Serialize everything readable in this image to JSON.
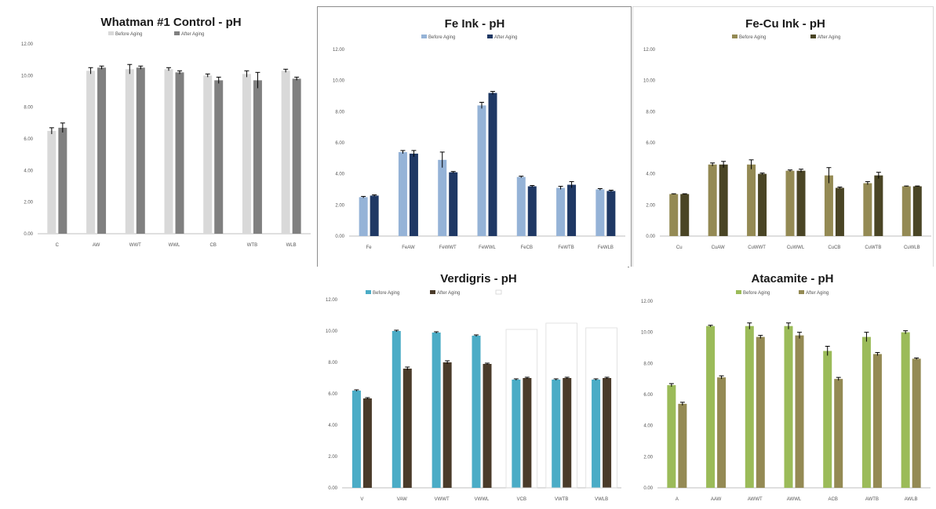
{
  "chart_data": [
    {
      "id": "whatman",
      "type": "bar",
      "title": "Whatman #1 Control - pH",
      "legend_placement": "top",
      "ylim": [
        0,
        12
      ],
      "ytick_step": 2,
      "categories": [
        "C",
        "AW",
        "WWT",
        "WWL",
        "CB",
        "WTB",
        "WLB"
      ],
      "series": [
        {
          "name": "Before Aging",
          "color": "#d9d9d9",
          "values": [
            6.5,
            10.3,
            10.4,
            10.4,
            10.0,
            10.1,
            10.3
          ],
          "errors": [
            0.2,
            0.2,
            0.3,
            0.1,
            0.1,
            0.2,
            0.1
          ]
        },
        {
          "name": "After Aging",
          "color": "#808080",
          "values": [
            6.7,
            10.5,
            10.5,
            10.2,
            9.7,
            9.7,
            9.8
          ],
          "errors": [
            0.3,
            0.1,
            0.1,
            0.1,
            0.2,
            0.5,
            0.1
          ]
        }
      ]
    },
    {
      "id": "fe",
      "type": "bar",
      "title": "Fe Ink - pH",
      "legend_placement": "top",
      "ylim": [
        0,
        12
      ],
      "ytick_step": 2,
      "categories": [
        "Fe",
        "FeAW",
        "FeWWT",
        "FeWWL",
        "FeCB",
        "FeWTB",
        "FeWLB"
      ],
      "series": [
        {
          "name": "Before Aging",
          "color": "#95b3d7",
          "values": [
            2.5,
            5.4,
            4.9,
            8.4,
            3.8,
            3.1,
            3.0
          ],
          "errors": [
            0.05,
            0.1,
            0.5,
            0.2,
            0.05,
            0.1,
            0.05
          ]
        },
        {
          "name": "After Aging",
          "color": "#1f3864",
          "values": [
            2.6,
            5.3,
            4.1,
            9.2,
            3.2,
            3.3,
            2.9
          ],
          "errors": [
            0.05,
            0.2,
            0.05,
            0.1,
            0.05,
            0.2,
            0.05
          ]
        }
      ]
    },
    {
      "id": "fecu",
      "type": "bar",
      "title": "Fe-Cu Ink - pH",
      "legend_placement": "top",
      "ylim": [
        0,
        12
      ],
      "ytick_step": 2,
      "categories": [
        "Cu",
        "CuAW",
        "CuWWT",
        "CuWWL",
        "CuCB",
        "CuWTB",
        "CuWLB"
      ],
      "series": [
        {
          "name": "Before Aging",
          "color": "#948a54",
          "values": [
            2.7,
            4.6,
            4.6,
            4.2,
            3.9,
            3.4,
            3.2
          ],
          "errors": [
            0.02,
            0.1,
            0.3,
            0.05,
            0.5,
            0.1,
            0.02
          ]
        },
        {
          "name": "After Aging",
          "color": "#4a4525",
          "values": [
            2.7,
            4.6,
            4.0,
            4.2,
            3.1,
            3.9,
            3.2
          ],
          "errors": [
            0.02,
            0.2,
            0.05,
            0.1,
            0.05,
            0.2,
            0.02
          ]
        }
      ]
    },
    {
      "id": "verdigris",
      "type": "bar",
      "title": "Verdigris - pH",
      "legend_placement": "top",
      "ylim": [
        0,
        12
      ],
      "ytick_step": 2,
      "categories": [
        "V",
        "VAW",
        "VWWT",
        "VWWL",
        "VCB",
        "VWTB",
        "VWLB"
      ],
      "series": [
        {
          "name": "Before Aging",
          "color": "#4bacc6",
          "values": [
            6.2,
            10.0,
            9.9,
            9.7,
            6.9,
            6.9,
            6.9
          ],
          "errors": [
            0.05,
            0.05,
            0.05,
            0.05,
            0.05,
            0.05,
            0.05
          ]
        },
        {
          "name": "After Aging",
          "color": "#4a3b2a",
          "values": [
            5.7,
            7.6,
            8.0,
            7.9,
            7.0,
            7.0,
            7.0
          ],
          "errors": [
            0.05,
            0.1,
            0.1,
            0.05,
            0.05,
            0.05,
            0.05
          ]
        },
        {
          "name": "",
          "color": "#ffffff",
          "outline": "#dcdcdc",
          "values": [
            null,
            null,
            null,
            null,
            10.1,
            10.5,
            10.2
          ],
          "errors": [
            null,
            null,
            null,
            null,
            0,
            0,
            0
          ]
        }
      ]
    },
    {
      "id": "atacamite",
      "type": "bar",
      "title": "Atacamite - pH",
      "legend_placement": "top",
      "ylim": [
        0,
        12
      ],
      "ytick_step": 2,
      "categories": [
        "A",
        "AAW",
        "AWWT",
        "AWWL",
        "ACB",
        "AWTB",
        "AWLB"
      ],
      "series": [
        {
          "name": "Before Aging",
          "color": "#9bbb59",
          "values": [
            6.6,
            10.4,
            10.4,
            10.4,
            8.8,
            9.7,
            10.0
          ],
          "errors": [
            0.1,
            0.05,
            0.2,
            0.2,
            0.3,
            0.3,
            0.1
          ]
        },
        {
          "name": "After Aging",
          "color": "#948a54",
          "values": [
            5.4,
            7.1,
            9.7,
            9.8,
            7.0,
            8.6,
            8.3
          ],
          "errors": [
            0.1,
            0.1,
            0.1,
            0.2,
            0.1,
            0.1,
            0.05
          ]
        }
      ]
    }
  ]
}
